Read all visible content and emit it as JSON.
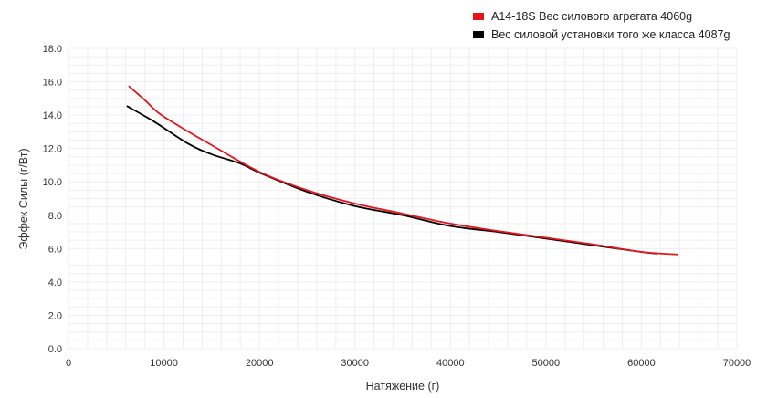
{
  "chart_data": {
    "type": "line",
    "title": "",
    "xlabel": "Натяжение (г)",
    "ylabel": "Эффек Силы (г/Вт)",
    "xlim": [
      0,
      70000
    ],
    "ylim": [
      0,
      18
    ],
    "x_ticks": [
      "0",
      "10000",
      "20000",
      "30000",
      "40000",
      "50000",
      "60000",
      "70000"
    ],
    "y_ticks": [
      "0.0",
      "2.0",
      "4.0",
      "6.0",
      "8.0",
      "10.0",
      "12.0",
      "14.0",
      "16.0",
      "18.0"
    ],
    "grid": true,
    "legend_position": "top-right",
    "series": [
      {
        "name": "A14-18S Вес силового агрегата 4060g",
        "color": "#e8141b",
        "points": [
          [
            6300,
            15.75
          ],
          [
            8000,
            14.9
          ],
          [
            9500,
            14.1
          ],
          [
            12000,
            13.2
          ],
          [
            15000,
            12.2
          ],
          [
            20000,
            10.6
          ],
          [
            25000,
            9.5
          ],
          [
            30000,
            8.7
          ],
          [
            35000,
            8.1
          ],
          [
            40000,
            7.5
          ],
          [
            45000,
            7.05
          ],
          [
            50000,
            6.65
          ],
          [
            55000,
            6.25
          ],
          [
            60000,
            5.8
          ],
          [
            63800,
            5.65
          ]
        ]
      },
      {
        "name": "Вес силовой установки того же класса 4087g",
        "color": "#000000",
        "points": [
          [
            6100,
            14.55
          ],
          [
            9000,
            13.6
          ],
          [
            12500,
            12.3
          ],
          [
            15000,
            11.65
          ],
          [
            18000,
            11.1
          ],
          [
            20000,
            10.55
          ],
          [
            25000,
            9.4
          ],
          [
            30000,
            8.55
          ],
          [
            35000,
            8.0
          ],
          [
            40000,
            7.35
          ],
          [
            45000,
            7.0
          ],
          [
            50000,
            6.6
          ],
          [
            55000,
            6.2
          ],
          [
            60000,
            5.8
          ],
          [
            61600,
            5.7
          ]
        ]
      }
    ]
  },
  "legend": {
    "items": [
      {
        "label": "A14-18S Вес силового агрегата 4060g",
        "color": "#e8141b"
      },
      {
        "label": "Вес силовой установки того же класса 4087g",
        "color": "#000000"
      }
    ]
  }
}
